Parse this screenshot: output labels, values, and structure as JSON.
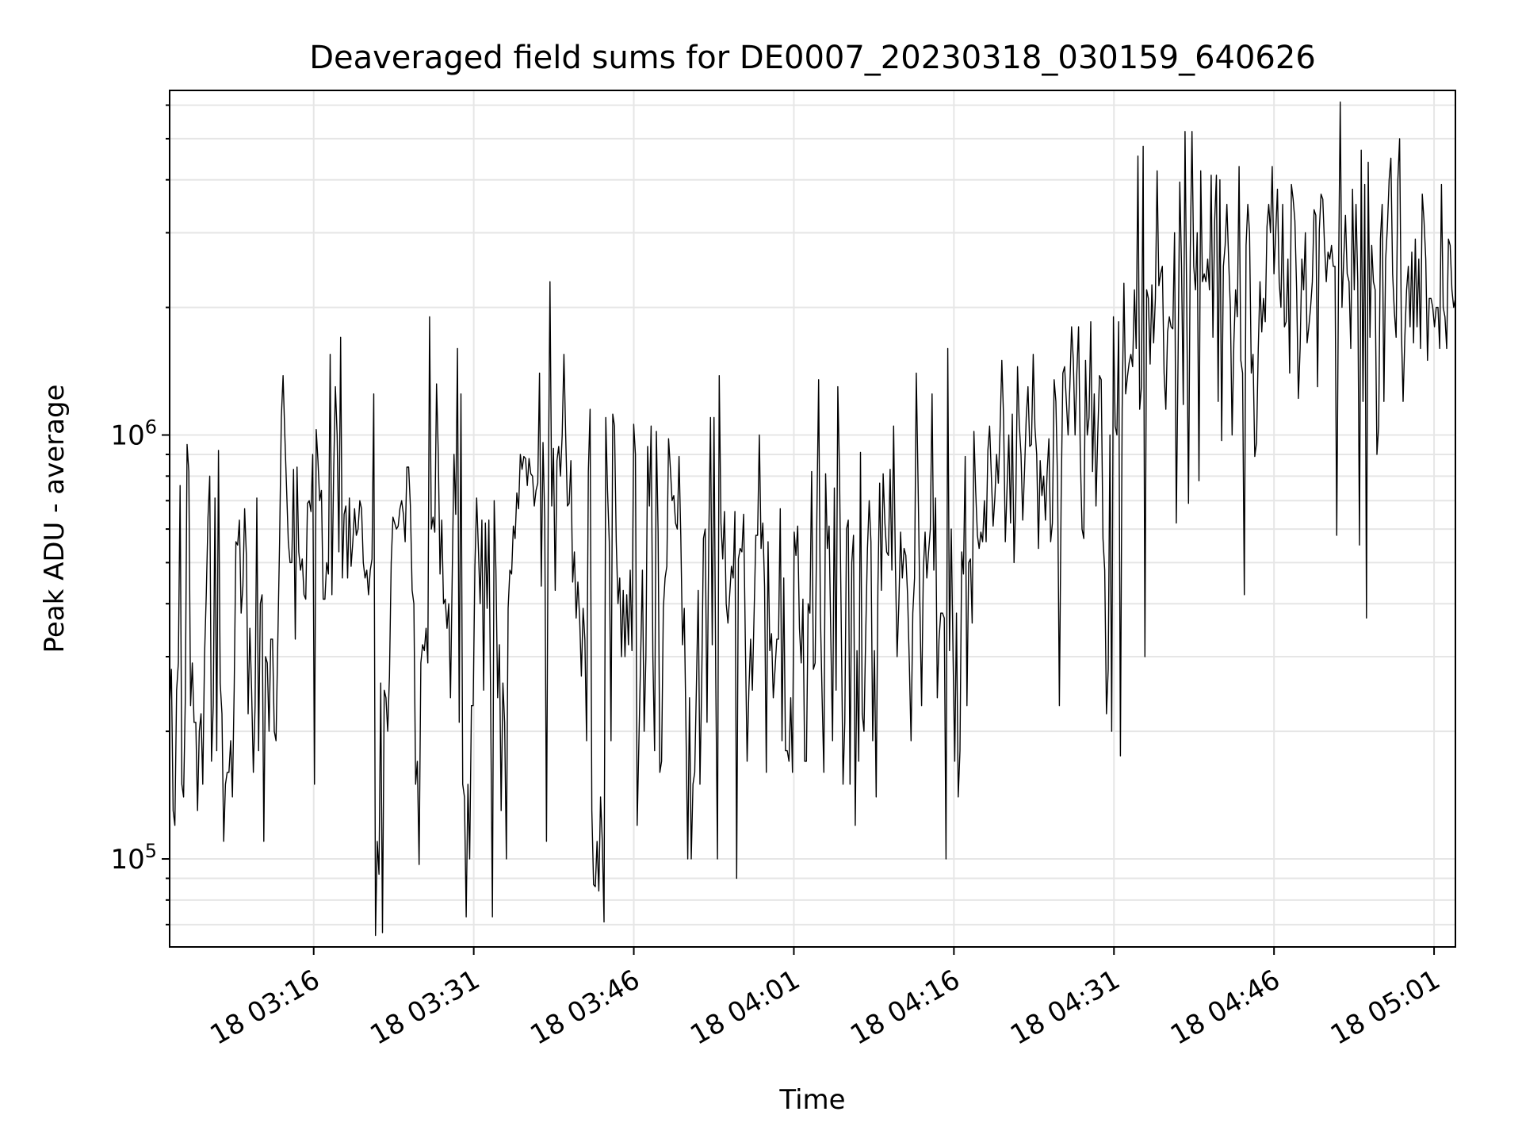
{
  "chart_data": {
    "type": "line",
    "title": "Deaveraged field sums for DE0007_20230318_030159_640626",
    "xlabel": "Time",
    "ylabel": "Peak ADU - average",
    "yscale": "log",
    "grid": true,
    "x_range": [
      "18 03:02:30",
      "18 05:03:00"
    ],
    "ylim": [
      62000,
      6500000
    ],
    "y_major_ticks": [
      {
        "value": 100000,
        "base": "10",
        "exp": "5"
      },
      {
        "value": 1000000,
        "base": "10",
        "exp": "6"
      }
    ],
    "x_ticks": [
      "18 03:16",
      "18 03:31",
      "18 03:46",
      "18 04:01",
      "18 04:16",
      "18 04:31",
      "18 04:46",
      "18 05:01"
    ],
    "line_color": "#000000",
    "series": [
      {
        "x_start": "18 03:02:30",
        "x_end": "18 05:03:00",
        "values": [
          230000,
          280000,
          130000,
          120000,
          250000,
          290000,
          760000,
          150000,
          140000,
          240000,
          950000,
          820000,
          230000,
          290000,
          210000,
          210000,
          130000,
          200000,
          220000,
          150000,
          300000,
          420000,
          640000,
          800000,
          170000,
          230000,
          710000,
          180000,
          920000,
          260000,
          220000,
          110000,
          150000,
          160000,
          160000,
          190000,
          140000,
          250000,
          560000,
          550000,
          630000,
          380000,
          440000,
          670000,
          520000,
          220000,
          350000,
          250000,
          160000,
          230000,
          710000,
          180000,
          400000,
          420000,
          110000,
          300000,
          290000,
          200000,
          330000,
          330000,
          200000,
          190000,
          330000,
          560000,
          1100000,
          1380000,
          1000000,
          750000,
          560000,
          500000,
          500000,
          830000,
          330000,
          840000,
          530000,
          480000,
          510000,
          420000,
          410000,
          690000,
          700000,
          660000,
          900000,
          150000,
          1030000,
          870000,
          700000,
          740000,
          410000,
          410000,
          500000,
          470000,
          1550000,
          420000,
          820000,
          1300000,
          1000000,
          530000,
          1700000,
          460000,
          650000,
          680000,
          460000,
          710000,
          490000,
          560000,
          670000,
          580000,
          600000,
          700000,
          670000,
          500000,
          460000,
          480000,
          420000,
          480000,
          510000,
          1250000,
          66000,
          110000,
          92000,
          260000,
          67000,
          250000,
          240000,
          200000,
          270000,
          500000,
          640000,
          620000,
          600000,
          610000,
          670000,
          700000,
          650000,
          560000,
          840000,
          840000,
          680000,
          430000,
          400000,
          150000,
          170000,
          97000,
          290000,
          320000,
          310000,
          350000,
          290000,
          1900000,
          600000,
          640000,
          590000,
          1320000,
          900000,
          470000,
          630000,
          400000,
          410000,
          350000,
          400000,
          240000,
          470000,
          900000,
          650000,
          1600000,
          210000,
          1250000,
          150000,
          140000,
          73000,
          150000,
          100000,
          230000,
          230000,
          490000,
          710000,
          540000,
          400000,
          630000,
          250000,
          620000,
          390000,
          630000,
          240000,
          73000,
          700000,
          480000,
          240000,
          320000,
          130000,
          260000,
          210000,
          100000,
          390000,
          480000,
          470000,
          610000,
          570000,
          730000,
          670000,
          900000,
          830000,
          890000,
          880000,
          760000,
          880000,
          810000,
          800000,
          680000,
          740000,
          770000,
          1400000,
          440000,
          960000,
          630000,
          110000,
          700000,
          2300000,
          680000,
          930000,
          430000,
          870000,
          940000,
          800000,
          1000000,
          1550000,
          1000000,
          680000,
          690000,
          870000,
          450000,
          530000,
          370000,
          450000,
          370000,
          270000,
          390000,
          330000,
          190000,
          820000,
          1150000,
          130000,
          87000,
          86000,
          110000,
          84000,
          140000,
          110000,
          71000,
          1100000,
          740000,
          560000,
          190000,
          1120000,
          1050000,
          560000,
          400000,
          460000,
          300000,
          430000,
          300000,
          420000,
          320000,
          480000,
          310000,
          1060000,
          900000,
          120000,
          190000,
          300000,
          480000,
          200000,
          300000,
          940000,
          680000,
          1050000,
          300000,
          180000,
          1020000,
          590000,
          160000,
          170000,
          390000,
          460000,
          490000,
          980000,
          840000,
          700000,
          720000,
          620000,
          600000,
          890000,
          580000,
          320000,
          390000,
          200000,
          100000,
          240000,
          100000,
          150000,
          160000,
          260000,
          430000,
          150000,
          260000,
          570000,
          600000,
          210000,
          560000,
          1100000,
          320000,
          1100000,
          270000,
          100000,
          1380000,
          620000,
          510000,
          660000,
          400000,
          360000,
          420000,
          490000,
          460000,
          660000,
          90000,
          510000,
          540000,
          530000,
          650000,
          320000,
          170000,
          250000,
          330000,
          250000,
          380000,
          580000,
          580000,
          1000000,
          540000,
          620000,
          440000,
          160000,
          560000,
          310000,
          340000,
          240000,
          280000,
          330000,
          330000,
          670000,
          190000,
          460000,
          180000,
          180000,
          170000,
          240000,
          160000,
          590000,
          520000,
          610000,
          350000,
          290000,
          410000,
          170000,
          170000,
          400000,
          380000,
          820000,
          280000,
          290000,
          650000,
          1350000,
          380000,
          240000,
          160000,
          810000,
          540000,
          610000,
          330000,
          190000,
          750000,
          250000,
          1300000,
          800000,
          350000,
          150000,
          210000,
          600000,
          630000,
          150000,
          500000,
          580000,
          120000,
          310000,
          170000,
          910000,
          220000,
          200000,
          340000,
          540000,
          700000,
          560000,
          190000,
          310000,
          140000,
          440000,
          770000,
          430000,
          810000,
          620000,
          530000,
          520000,
          830000,
          480000,
          1050000,
          500000,
          300000,
          400000,
          590000,
          460000,
          540000,
          520000,
          420000,
          290000,
          190000,
          380000,
          460000,
          1400000,
          780000,
          400000,
          230000,
          480000,
          590000,
          460000,
          530000,
          600000,
          1250000,
          480000,
          710000,
          240000,
          330000,
          380000,
          380000,
          370000,
          100000,
          1600000,
          310000,
          600000,
          310000,
          170000,
          380000,
          140000,
          180000,
          530000,
          470000,
          890000,
          230000,
          500000,
          510000,
          360000,
          1020000,
          740000,
          580000,
          540000,
          590000,
          560000,
          700000,
          560000,
          920000,
          1050000,
          800000,
          610000,
          710000,
          900000,
          770000,
          1030000,
          1500000,
          1100000,
          560000,
          750000,
          1000000,
          620000,
          1120000,
          500000,
          700000,
          1450000,
          1060000,
          900000,
          630000,
          820000,
          1100000,
          1300000,
          940000,
          950000,
          1550000,
          1040000,
          900000,
          540000,
          870000,
          720000,
          800000,
          630000,
          820000,
          980000,
          560000,
          620000,
          1350000,
          1200000,
          760000,
          230000,
          700000,
          1400000,
          1450000,
          1200000,
          1000000,
          1300000,
          1800000,
          1500000,
          1000000,
          1400000,
          1800000,
          900000,
          600000,
          570000,
          1500000,
          1000000,
          1100000,
          1850000,
          820000,
          1250000,
          680000,
          1000000,
          1380000,
          1350000,
          570000,
          480000,
          220000,
          280000,
          1000000,
          200000,
          1900000,
          1050000,
          1000000,
          1850000,
          175000,
          1150000,
          2280000,
          1250000,
          1370000,
          1480000,
          1550000,
          1450000,
          2200000,
          1600000,
          4550000,
          1150000,
          1300000,
          4800000,
          300000,
          2200000,
          2100000,
          1470000,
          2260000,
          1650000,
          2100000,
          4200000,
          2250000,
          2400000,
          2500000,
          1400000,
          1150000,
          1750000,
          1900000,
          1800000,
          1780000,
          3000000,
          620000,
          1500000,
          3950000,
          2500000,
          1180000,
          5200000,
          2000000,
          690000,
          2700000,
          5200000,
          2500000,
          2200000,
          3000000,
          780000,
          4200000,
          2300000,
          2400000,
          2300000,
          2600000,
          2200000,
          4100000,
          1700000,
          3200000,
          4100000,
          1200000,
          4000000,
          970000,
          2500000,
          2800000,
          3500000,
          2600000,
          2000000,
          1000000,
          1650000,
          2200000,
          1900000,
          4300000,
          1500000,
          1400000,
          420000,
          2800000,
          3500000,
          3000000,
          1400000,
          1550000,
          890000,
          960000,
          1600000,
          2300000,
          1750000,
          2100000,
          1850000,
          3100000,
          3500000,
          3000000,
          4300000,
          2400000,
          3000000,
          3800000,
          2300000,
          2000000,
          3500000,
          1800000,
          1850000,
          2600000,
          1400000,
          3900000,
          3600000,
          3200000,
          2200000,
          1220000,
          1600000,
          2600000,
          2200000,
          3000000,
          1650000,
          1800000,
          2000000,
          2300000,
          3400000,
          3300000,
          1300000,
          3050000,
          3700000,
          3600000,
          2800000,
          2300000,
          2700000,
          2600000,
          2800000,
          2500000,
          2500000,
          580000,
          2300000,
          6100000,
          2000000,
          2600000,
          3300000,
          2400000,
          2300000,
          1600000,
          3800000,
          2200000,
          3500000,
          2300000,
          550000,
          4700000,
          1200000,
          3900000,
          370000,
          4400000,
          1700000,
          2800000,
          2300000,
          2200000,
          900000,
          1050000,
          2900000,
          3500000,
          1200000,
          2600000,
          3100000,
          4000000,
          4500000,
          2400000,
          1950000,
          1700000,
          4000000,
          5000000,
          1800000,
          1200000,
          1700000,
          2200000,
          2500000,
          1800000,
          2700000,
          1650000,
          2900000,
          1800000,
          2600000,
          1600000,
          3700000,
          3200000,
          2600000,
          1500000,
          2100000,
          2100000,
          2000000,
          1800000,
          2000000,
          2000000,
          1600000,
          3900000,
          2000000,
          1900000,
          1600000,
          2900000,
          2800000,
          2200000,
          2000000,
          2100000
        ]
      }
    ]
  }
}
